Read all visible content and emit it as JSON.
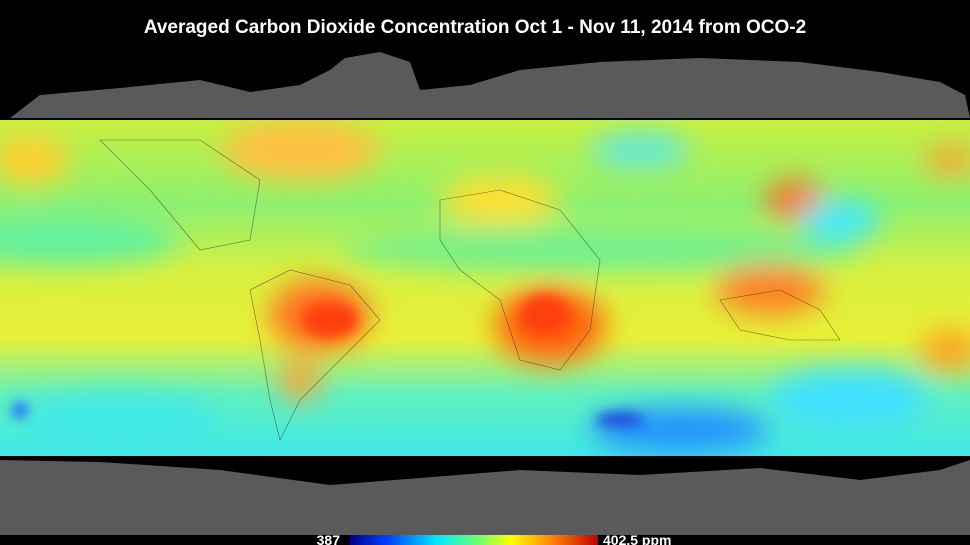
{
  "title": "Averaged Carbon Dioxide Concentration  Oct 1 - Nov 11, 2014  from OCO-2",
  "colorbar": {
    "min_label": "387",
    "max_label": "402.5 ppm"
  }
}
